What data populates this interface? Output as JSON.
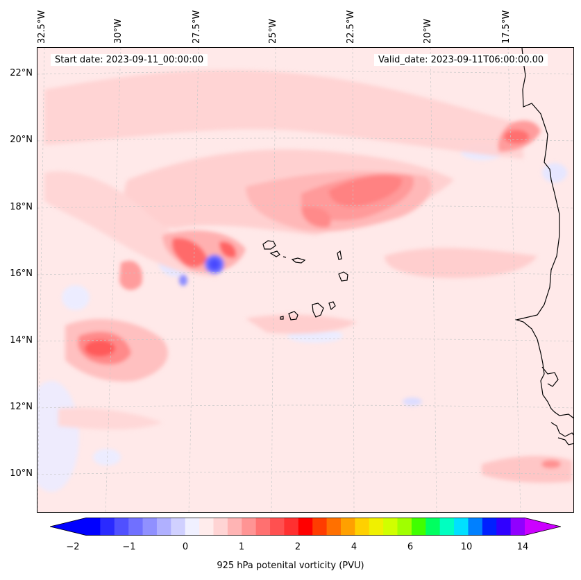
{
  "map": {
    "header": {
      "start_date": "Start date: 2023-09-11_00:00:00",
      "valid_date": "Valid_date: 2023-09-11T06:00:00.00"
    },
    "longitude_labels": [
      "32.5°W",
      "30°W",
      "27.5°W",
      "25°W",
      "22.5°W",
      "20°W",
      "17.5°W"
    ],
    "latitude_labels": [
      "22°N",
      "20°N",
      "18°N",
      "16°N",
      "14°N",
      "12°N",
      "10°N"
    ],
    "colors": {
      "background": "#ffe9e9",
      "coastline": "#000000",
      "gridline": "#c8c8c8"
    }
  },
  "colorbar": {
    "label": "925 hPa potenital vorticity (PVU)",
    "tick_labels": [
      "−2",
      "−1",
      "0",
      "1",
      "2",
      "4",
      "6",
      "10",
      "14"
    ],
    "range": [
      -2,
      15
    ],
    "extend": "both",
    "colors": [
      "#0000ff",
      "#2a2aff",
      "#5050ff",
      "#7070ff",
      "#9090ff",
      "#b0b0ff",
      "#d0d0ff",
      "#f0f0ff",
      "#ffecec",
      "#ffd4d4",
      "#ffb4b4",
      "#ff9494",
      "#ff7070",
      "#ff5050",
      "#ff3030",
      "#ff0000",
      "#ff3c00",
      "#ff7000",
      "#ffa000",
      "#ffd000",
      "#f0f000",
      "#d0ff00",
      "#a0ff00",
      "#40ff00",
      "#00ff60",
      "#00ffc0",
      "#00e0ff",
      "#0080ff",
      "#0020ff",
      "#3000ff",
      "#9000ff"
    ],
    "under_color": "#0000ff",
    "over_color": "#cc00ff"
  }
}
